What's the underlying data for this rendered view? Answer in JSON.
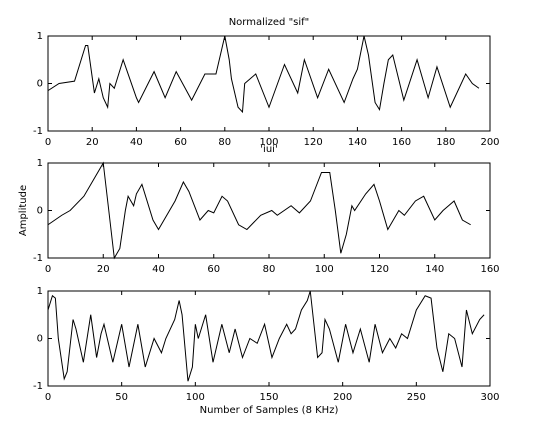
{
  "chart_data": [
    {
      "type": "line",
      "title": "Normalized \"sif\"",
      "x": [
        0,
        5,
        12,
        17,
        18,
        21,
        23,
        25,
        27,
        28,
        30,
        34,
        40,
        41,
        48,
        53,
        58,
        65,
        71,
        76,
        80,
        82,
        83,
        86,
        88,
        89,
        94,
        100,
        107,
        113,
        116,
        122,
        127,
        134,
        138,
        140,
        143,
        145,
        148,
        150,
        152,
        154,
        156,
        161,
        167,
        172,
        176,
        182,
        189,
        192,
        195
      ],
      "values": [
        -0.15,
        0,
        0.05,
        0.8,
        0.8,
        -0.2,
        0.1,
        -0.3,
        -0.5,
        0,
        -0.1,
        0.5,
        -0.3,
        -0.4,
        0.25,
        -0.3,
        0.25,
        -0.35,
        0.2,
        0.2,
        1,
        0.5,
        0.1,
        -0.5,
        -0.6,
        0,
        0.2,
        -0.5,
        0.4,
        -0.2,
        0.5,
        -0.3,
        0.3,
        -0.4,
        0.1,
        0.3,
        1,
        0.6,
        -0.4,
        -0.55,
        0,
        0.5,
        0.6,
        -0.35,
        0.5,
        -0.3,
        0.35,
        -0.5,
        0.2,
        0,
        -0.1
      ],
      "color": "#000000",
      "xlim": [
        0,
        200
      ],
      "xticks": [
        0,
        20,
        40,
        60,
        80,
        100,
        120,
        140,
        160,
        180,
        200
      ],
      "ylim": [
        -1,
        1
      ],
      "yticks": [
        -1,
        0,
        1
      ]
    },
    {
      "type": "line",
      "title": "'iui'",
      "ylabel": "Amplitude",
      "x": [
        0,
        5,
        8,
        13,
        17,
        19,
        20,
        22,
        24,
        26,
        28,
        29,
        31,
        32,
        34,
        38,
        40,
        43,
        46,
        49,
        51,
        55,
        58,
        60,
        63,
        65,
        69,
        72,
        77,
        81,
        83,
        88,
        91,
        95,
        97,
        99,
        102,
        104,
        106,
        108,
        110,
        111,
        115,
        118,
        120,
        123,
        127,
        129,
        133,
        136,
        140,
        143,
        145,
        147,
        150,
        153
      ],
      "values": [
        -0.3,
        -0.1,
        0,
        0.3,
        0.7,
        0.9,
        1,
        0,
        -1,
        -0.8,
        0,
        0.3,
        0.1,
        0.35,
        0.55,
        -0.2,
        -0.4,
        -0.1,
        0.2,
        0.6,
        0.4,
        -0.2,
        0,
        -0.05,
        0.3,
        0.2,
        -0.3,
        -0.4,
        -0.1,
        0,
        -0.1,
        0.1,
        -0.05,
        0.2,
        0.5,
        0.8,
        0.8,
        0,
        -0.9,
        -0.5,
        0.1,
        0,
        0.35,
        0.55,
        0.2,
        -0.4,
        0,
        -0.1,
        0.2,
        0.3,
        -0.2,
        0,
        0.1,
        0.2,
        -0.2,
        -0.3
      ],
      "color": "#000000",
      "xlim": [
        0,
        160
      ],
      "xticks": [
        0,
        20,
        40,
        60,
        80,
        100,
        120,
        140,
        160
      ],
      "ylim": [
        -1,
        1
      ],
      "yticks": [
        -1,
        0,
        1
      ]
    },
    {
      "type": "line",
      "xlabel": "Number of Samples (8 KHz)",
      "x": [
        0,
        3,
        5,
        7,
        11,
        13,
        17,
        19,
        24,
        29,
        33,
        36,
        38,
        44,
        50,
        55,
        61,
        66,
        68,
        72,
        77,
        80,
        86,
        89,
        91,
        95,
        98,
        100,
        102,
        107,
        112,
        118,
        123,
        127,
        132,
        137,
        142,
        147,
        152,
        157,
        162,
        165,
        168,
        172,
        176,
        178,
        183,
        186,
        188,
        191,
        197,
        202,
        207,
        212,
        218,
        222,
        227,
        232,
        236,
        240,
        244,
        250,
        256,
        260,
        264,
        268,
        272,
        276,
        281,
        284,
        288,
        293,
        296
      ],
      "values": [
        0.6,
        0.9,
        0.85,
        0,
        -0.85,
        -0.7,
        0.4,
        0.2,
        -0.5,
        0.5,
        -0.4,
        0.1,
        0.3,
        -0.5,
        0.3,
        -0.6,
        0.3,
        -0.6,
        -0.4,
        0,
        -0.3,
        0,
        0.4,
        0.8,
        0.5,
        -0.9,
        -0.6,
        0.3,
        0,
        0.5,
        -0.5,
        0.3,
        -0.3,
        0.2,
        -0.4,
        0,
        -0.1,
        0.3,
        -0.4,
        0,
        0.3,
        0.1,
        0.2,
        0.6,
        0.8,
        1,
        -0.4,
        -0.3,
        0.4,
        0.2,
        -0.5,
        0.3,
        -0.3,
        0.2,
        -0.5,
        0.3,
        -0.3,
        0,
        -0.2,
        0.1,
        0,
        0.6,
        0.9,
        0.85,
        -0.2,
        -0.7,
        0.1,
        0,
        -0.6,
        0.6,
        0.1,
        0.4,
        0.5
      ],
      "color": "#000000",
      "xlim": [
        0,
        300
      ],
      "xticks": [
        0,
        50,
        100,
        150,
        200,
        250,
        300
      ],
      "ylim": [
        -1,
        1
      ],
      "yticks": [
        -1,
        0,
        1
      ]
    }
  ]
}
